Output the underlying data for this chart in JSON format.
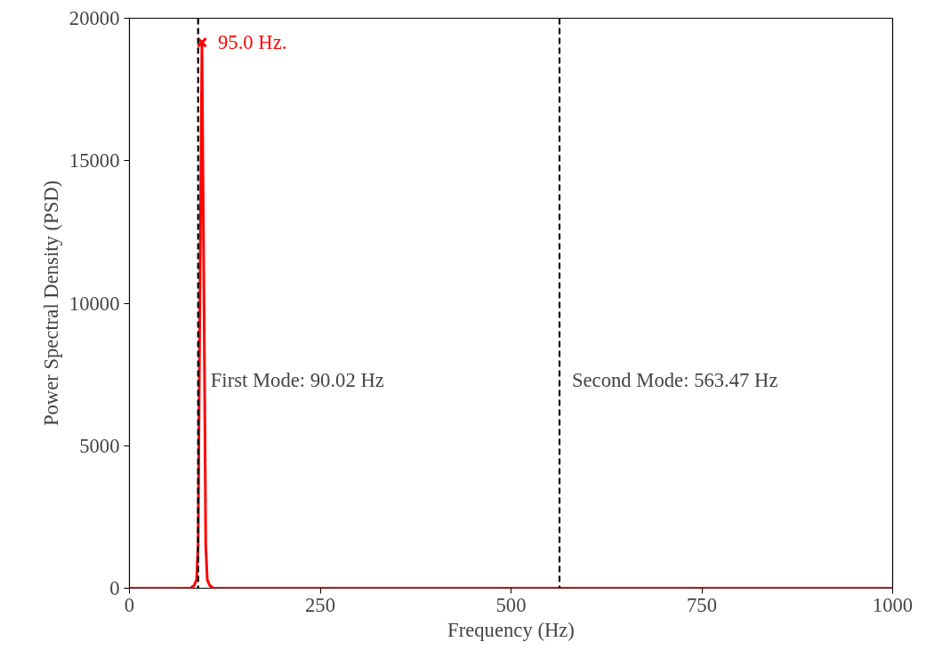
{
  "chart_data": {
    "type": "line",
    "xlabel": "Frequency (Hz)",
    "ylabel": "Power Spectral Density (PSD)",
    "xlim": [
      0,
      1000
    ],
    "ylim": [
      0,
      20000
    ],
    "xticks": [
      0,
      250,
      500,
      750,
      1000
    ],
    "yticks": [
      0,
      5000,
      10000,
      15000,
      20000
    ],
    "grid": false,
    "series": [
      {
        "color": "#ff0000",
        "x": [
          0,
          50,
          80,
          85,
          88,
          90,
          92,
          95,
          98,
          100,
          102,
          105,
          110,
          120,
          200,
          500,
          1000
        ],
        "values": [
          0,
          0,
          0,
          100,
          300,
          1500,
          9000,
          19150,
          9000,
          1500,
          300,
          100,
          0,
          0,
          0,
          0,
          0
        ]
      },
      {
        "type": "scatter",
        "marker": "cross",
        "color": "#ff0000",
        "x": [
          95
        ],
        "values": [
          19150
        ]
      }
    ],
    "annotations": [
      {
        "text": "95.0 Hz.",
        "x": 95,
        "y": 19150
      }
    ],
    "ref_lines": [
      {
        "axis": "x",
        "value": 90.02,
        "label": "First Mode: 90.02 Hz",
        "color": "#000000",
        "line_style": "dashed"
      },
      {
        "axis": "x",
        "value": 563.47,
        "label": "Second Mode: 563.47 Hz",
        "color": "#000000",
        "line_style": "dashed"
      }
    ]
  }
}
